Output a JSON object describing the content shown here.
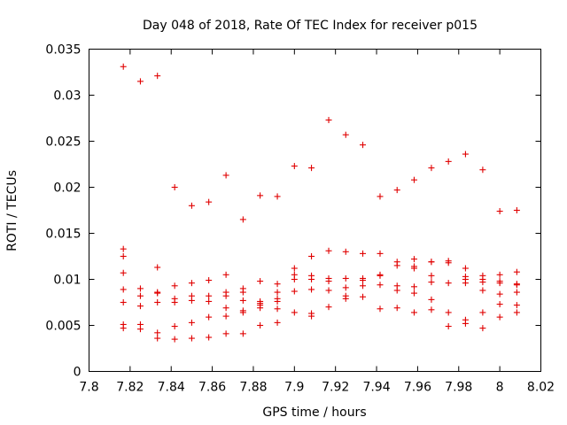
{
  "chart_data": {
    "type": "scatter",
    "title": "Day 048 of 2018, Rate Of TEC Index for receiver p015",
    "xlabel": "GPS time / hours",
    "ylabel": "ROTI / TECUs",
    "xlim": [
      7.8,
      8.02
    ],
    "ylim": [
      0,
      0.035
    ],
    "x_ticks": [
      "7.8",
      "7.82",
      "7.84",
      "7.86",
      "7.88",
      "7.9",
      "7.92",
      "7.94",
      "7.96",
      "7.98",
      "8",
      "8.02"
    ],
    "y_ticks": [
      "0",
      "0.005",
      "0.01",
      "0.015",
      "0.02",
      "0.025",
      "0.03",
      "0.035"
    ],
    "marker": "+",
    "color": "#e00000",
    "grid": false,
    "series": [
      {
        "name": "p015",
        "points": [
          [
            7.8167,
            0.0331
          ],
          [
            7.8167,
            0.0133
          ],
          [
            7.8167,
            0.0125
          ],
          [
            7.8167,
            0.0107
          ],
          [
            7.8167,
            0.0089
          ],
          [
            7.8167,
            0.0075
          ],
          [
            7.8167,
            0.0051
          ],
          [
            7.8167,
            0.0047
          ],
          [
            7.825,
            0.0315
          ],
          [
            7.825,
            0.009
          ],
          [
            7.825,
            0.0082
          ],
          [
            7.825,
            0.0071
          ],
          [
            7.825,
            0.0051
          ],
          [
            7.825,
            0.0046
          ],
          [
            7.8333,
            0.0321
          ],
          [
            7.8333,
            0.0113
          ],
          [
            7.8333,
            0.0086
          ],
          [
            7.8333,
            0.0085
          ],
          [
            7.8333,
            0.0075
          ],
          [
            7.8333,
            0.0042
          ],
          [
            7.8333,
            0.0036
          ],
          [
            7.8417,
            0.02
          ],
          [
            7.8417,
            0.0093
          ],
          [
            7.8417,
            0.0079
          ],
          [
            7.8417,
            0.0075
          ],
          [
            7.8417,
            0.0049
          ],
          [
            7.8417,
            0.0035
          ],
          [
            7.85,
            0.018
          ],
          [
            7.85,
            0.0096
          ],
          [
            7.85,
            0.0082
          ],
          [
            7.85,
            0.0077
          ],
          [
            7.85,
            0.0053
          ],
          [
            7.85,
            0.0036
          ],
          [
            7.8583,
            0.0184
          ],
          [
            7.8583,
            0.0099
          ],
          [
            7.8583,
            0.0082
          ],
          [
            7.8583,
            0.0076
          ],
          [
            7.8583,
            0.0059
          ],
          [
            7.8583,
            0.0037
          ],
          [
            7.8667,
            0.0213
          ],
          [
            7.8667,
            0.0105
          ],
          [
            7.8667,
            0.0086
          ],
          [
            7.8667,
            0.0082
          ],
          [
            7.8667,
            0.0069
          ],
          [
            7.8667,
            0.006
          ],
          [
            7.8667,
            0.0041
          ],
          [
            7.875,
            0.0165
          ],
          [
            7.875,
            0.009
          ],
          [
            7.875,
            0.0086
          ],
          [
            7.875,
            0.0077
          ],
          [
            7.875,
            0.0066
          ],
          [
            7.875,
            0.0064
          ],
          [
            7.875,
            0.0041
          ],
          [
            7.8833,
            0.0191
          ],
          [
            7.8833,
            0.0098
          ],
          [
            7.8833,
            0.0076
          ],
          [
            7.8833,
            0.0074
          ],
          [
            7.8833,
            0.0072
          ],
          [
            7.8833,
            0.0069
          ],
          [
            7.8833,
            0.005
          ],
          [
            7.8917,
            0.019
          ],
          [
            7.8917,
            0.0095
          ],
          [
            7.8917,
            0.0086
          ],
          [
            7.8917,
            0.0079
          ],
          [
            7.8917,
            0.0076
          ],
          [
            7.8917,
            0.0068
          ],
          [
            7.8917,
            0.0053
          ],
          [
            7.9,
            0.0223
          ],
          [
            7.9,
            0.0112
          ],
          [
            7.9,
            0.0105
          ],
          [
            7.9,
            0.01
          ],
          [
            7.9,
            0.0087
          ],
          [
            7.9,
            0.0064
          ],
          [
            7.9083,
            0.0221
          ],
          [
            7.9083,
            0.0125
          ],
          [
            7.9083,
            0.0104
          ],
          [
            7.9083,
            0.01
          ],
          [
            7.9083,
            0.0089
          ],
          [
            7.9083,
            0.0063
          ],
          [
            7.9083,
            0.006
          ],
          [
            7.9167,
            0.0273
          ],
          [
            7.9167,
            0.0131
          ],
          [
            7.9167,
            0.0101
          ],
          [
            7.9167,
            0.0098
          ],
          [
            7.9167,
            0.0088
          ],
          [
            7.9167,
            0.007
          ],
          [
            7.925,
            0.0257
          ],
          [
            7.925,
            0.013
          ],
          [
            7.925,
            0.0101
          ],
          [
            7.925,
            0.0091
          ],
          [
            7.925,
            0.0082
          ],
          [
            7.925,
            0.0079
          ],
          [
            7.9333,
            0.0246
          ],
          [
            7.9333,
            0.0128
          ],
          [
            7.9333,
            0.0101
          ],
          [
            7.9333,
            0.0099
          ],
          [
            7.9333,
            0.0093
          ],
          [
            7.9333,
            0.0081
          ],
          [
            7.9417,
            0.019
          ],
          [
            7.9417,
            0.0128
          ],
          [
            7.9417,
            0.0105
          ],
          [
            7.9417,
            0.0104
          ],
          [
            7.9417,
            0.0094
          ],
          [
            7.9417,
            0.0068
          ],
          [
            7.95,
            0.0197
          ],
          [
            7.95,
            0.0119
          ],
          [
            7.95,
            0.0115
          ],
          [
            7.95,
            0.0093
          ],
          [
            7.95,
            0.0088
          ],
          [
            7.95,
            0.0069
          ],
          [
            7.9583,
            0.0208
          ],
          [
            7.9583,
            0.0122
          ],
          [
            7.9583,
            0.0114
          ],
          [
            7.9583,
            0.0112
          ],
          [
            7.9583,
            0.0092
          ],
          [
            7.9583,
            0.0085
          ],
          [
            7.9583,
            0.0064
          ],
          [
            7.9667,
            0.0221
          ],
          [
            7.9667,
            0.0119
          ],
          [
            7.9667,
            0.0119
          ],
          [
            7.9667,
            0.0104
          ],
          [
            7.9667,
            0.0097
          ],
          [
            7.9667,
            0.0078
          ],
          [
            7.9667,
            0.0067
          ],
          [
            7.975,
            0.0228
          ],
          [
            7.975,
            0.012
          ],
          [
            7.975,
            0.0118
          ],
          [
            7.975,
            0.0096
          ],
          [
            7.975,
            0.0064
          ],
          [
            7.975,
            0.0049
          ],
          [
            7.9833,
            0.0236
          ],
          [
            7.9833,
            0.0112
          ],
          [
            7.9833,
            0.0103
          ],
          [
            7.9833,
            0.01
          ],
          [
            7.9833,
            0.0096
          ],
          [
            7.9833,
            0.0056
          ],
          [
            7.9833,
            0.0052
          ],
          [
            7.9917,
            0.0219
          ],
          [
            7.9917,
            0.0104
          ],
          [
            7.9917,
            0.01
          ],
          [
            7.9917,
            0.0097
          ],
          [
            7.9917,
            0.0088
          ],
          [
            7.9917,
            0.0064
          ],
          [
            7.9917,
            0.0047
          ],
          [
            8.0,
            0.0174
          ],
          [
            8.0,
            0.0105
          ],
          [
            8.0,
            0.0098
          ],
          [
            8.0,
            0.0096
          ],
          [
            8.0,
            0.0084
          ],
          [
            8.0,
            0.0073
          ],
          [
            8.0,
            0.0059
          ],
          [
            8.0083,
            0.0175
          ],
          [
            8.0083,
            0.0108
          ],
          [
            8.0083,
            0.0095
          ],
          [
            8.0083,
            0.0094
          ],
          [
            8.0083,
            0.0086
          ],
          [
            8.0083,
            0.0072
          ],
          [
            8.0083,
            0.0064
          ]
        ]
      }
    ]
  }
}
